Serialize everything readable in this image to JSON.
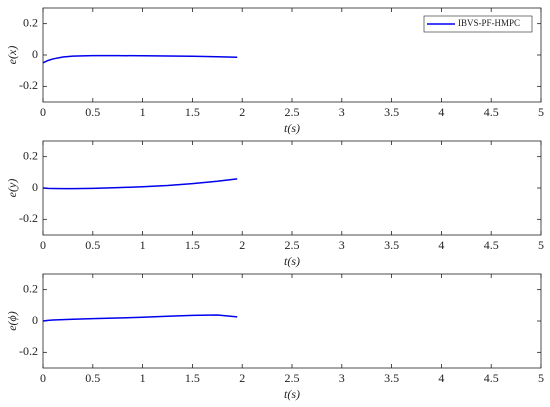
{
  "chart_data": [
    {
      "type": "line",
      "ylabel": "e(x)",
      "xlabel": "t(s)",
      "x": [
        0,
        0.05,
        0.1,
        0.2,
        0.3,
        0.5,
        0.75,
        1,
        1.25,
        1.5,
        1.75,
        1.95
      ],
      "series": [
        {
          "name": "IBVS-PF-HMPC",
          "color": "#0000ee",
          "values": [
            -0.05,
            -0.035,
            -0.025,
            -0.013,
            -0.007,
            -0.004,
            -0.004,
            -0.005,
            -0.006,
            -0.008,
            -0.011,
            -0.014
          ]
        }
      ],
      "legend": "northeast",
      "grid": false,
      "xlim": [
        0,
        5
      ],
      "xticks": [
        0,
        0.5,
        1,
        1.5,
        2,
        2.5,
        3,
        3.5,
        4,
        4.5,
        5
      ],
      "ylim": [
        -0.3,
        0.3
      ],
      "yticks": [
        -0.2,
        0,
        0.2
      ]
    },
    {
      "type": "line",
      "ylabel": "e(y)",
      "xlabel": "t(s)",
      "x": [
        0,
        0.05,
        0.1,
        0.2,
        0.3,
        0.5,
        0.75,
        1,
        1.25,
        1.5,
        1.75,
        1.95
      ],
      "series": [
        {
          "color": "#0000ee",
          "values": [
            0,
            -0.002,
            -0.003,
            -0.004,
            -0.004,
            -0.002,
            0.002,
            0.008,
            0.016,
            0.028,
            0.043,
            0.058
          ]
        }
      ],
      "grid": false,
      "xlim": [
        0,
        5
      ],
      "xticks": [
        0,
        0.5,
        1,
        1.5,
        2,
        2.5,
        3,
        3.5,
        4,
        4.5,
        5
      ],
      "ylim": [
        -0.3,
        0.3
      ],
      "yticks": [
        -0.2,
        0,
        0.2
      ]
    },
    {
      "type": "line",
      "ylabel": "e(ϕ)",
      "xlabel": "t(s)",
      "x": [
        0,
        0.05,
        0.1,
        0.2,
        0.3,
        0.5,
        0.75,
        1,
        1.25,
        1.5,
        1.75,
        1.95
      ],
      "series": [
        {
          "color": "#0000ee",
          "values": [
            0,
            0.004,
            0.006,
            0.009,
            0.011,
            0.015,
            0.019,
            0.024,
            0.03,
            0.036,
            0.038,
            0.026
          ]
        }
      ],
      "grid": false,
      "xlim": [
        0,
        5
      ],
      "xticks": [
        0,
        0.5,
        1,
        1.5,
        2,
        2.5,
        3,
        3.5,
        4,
        4.5,
        5
      ],
      "ylim": [
        -0.3,
        0.3
      ],
      "yticks": [
        -0.2,
        0,
        0.2
      ]
    }
  ]
}
